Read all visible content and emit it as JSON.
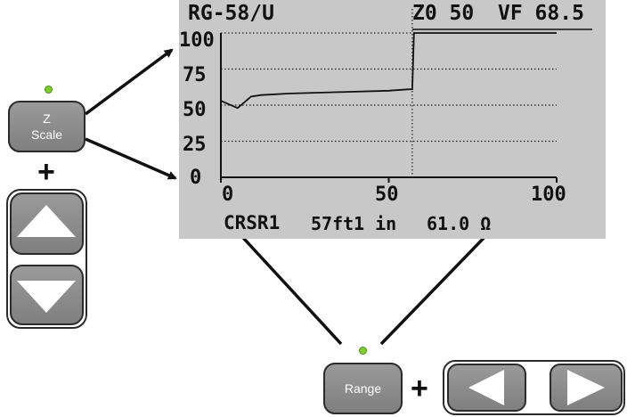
{
  "display": {
    "cable_type": "RG-58/U",
    "z0_label": "Z0 50",
    "vf_label": "VF 68.5",
    "y_ticks": [
      "100",
      "75",
      "50",
      "25",
      "0"
    ],
    "x_ticks": [
      "0",
      "50",
      "100"
    ],
    "cursor_label": "CRSR1",
    "cursor_distance_ft": "57ft",
    "cursor_distance_in": "1 in",
    "impedance_readout": "61.0 Ω"
  },
  "chart_data": {
    "type": "line",
    "title": "",
    "xlabel": "",
    "ylabel": "",
    "xlim": [
      0,
      100
    ],
    "ylim": [
      0,
      100
    ],
    "y_ticks": [
      0,
      25,
      50,
      75,
      100
    ],
    "x_ticks": [
      0,
      50,
      100
    ],
    "grid": "dotted horizontal",
    "cursor_x": 57,
    "series": [
      {
        "x": [
          0,
          2,
          5,
          7,
          9,
          12,
          20,
          35,
          50,
          56,
          57,
          57.5,
          100
        ],
        "y": [
          53,
          51,
          48,
          52,
          56,
          57,
          58,
          59,
          60,
          61,
          61,
          100,
          100
        ]
      }
    ]
  },
  "controls": {
    "z_scale_line1": "Z",
    "z_scale_line2": "Scale",
    "range_label": "Range",
    "plus": "+",
    "led_color": "#7fcf2f"
  }
}
